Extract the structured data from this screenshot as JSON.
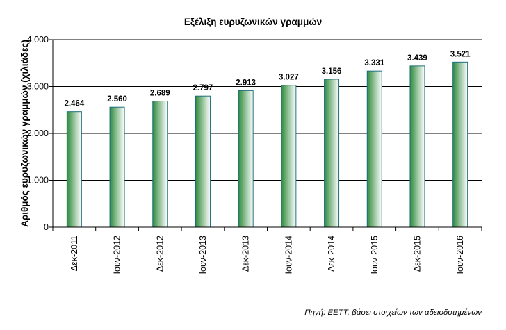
{
  "chart_data": {
    "type": "bar",
    "title": "Εξέλιξη ευρυζωνικών γραμμών",
    "xlabel": "",
    "ylabel": "Αριθμός ευρυζωνικών γραμμών (χιλιάδες)",
    "categories": [
      "Δεκ-2011",
      "Ιουν-2012",
      "Δεκ-2012",
      "Ιουν-2013",
      "Δεκ-2013",
      "Ιουν-2014",
      "Δεκ-2014",
      "Ιουν-2015",
      "Δεκ-2015",
      "Ιουν-2016"
    ],
    "values": [
      2464,
      2560,
      2689,
      2797,
      2913,
      3027,
      3156,
      3331,
      3439,
      3521
    ],
    "data_labels": [
      "2.464",
      "2.560",
      "2.689",
      "2.797",
      "2.913",
      "3.027",
      "3.156",
      "3.331",
      "3.439",
      "3.521"
    ],
    "ylim": [
      0,
      4000
    ],
    "yticks": [
      0,
      1000,
      2000,
      3000,
      4000
    ],
    "ytick_labels": [
      "0",
      "1.000",
      "2.000",
      "3.000",
      "4.000"
    ],
    "grid": true,
    "legend": "none",
    "source": "Πηγή: ΕΕΤΤ, βάσει στοιχείων των αδειοδοτημένων",
    "colors": {
      "bar_dark": "#2f8a3c",
      "bar_light": "#ffffff",
      "bar_edge": "#1f6f80",
      "grid": "#000000"
    }
  }
}
